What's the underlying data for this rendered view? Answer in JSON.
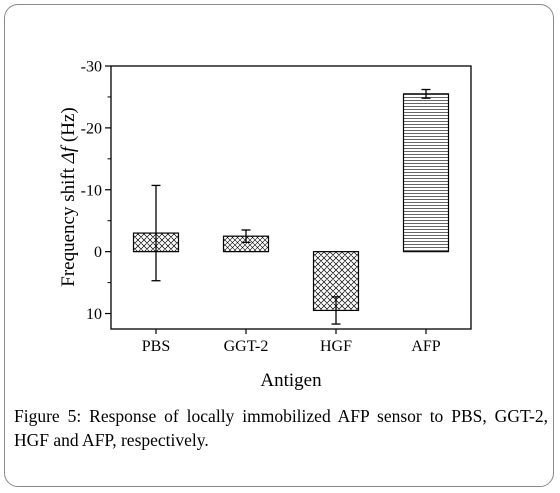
{
  "chart_data": {
    "type": "bar",
    "xlabel": "Antigen",
    "ylabel_prefix": "Frequency shift ",
    "ylabel_symbol": "Δf",
    "ylabel_suffix": " (Hz)",
    "categories": [
      "PBS",
      "GGT-2",
      "HGF",
      "AFP"
    ],
    "values": [
      -3,
      -2.5,
      9.5,
      -25.5
    ],
    "errors": [
      7.7,
      1.0,
      2.2,
      0.7
    ],
    "patterns": [
      "crosshatch",
      "crosshatch-fine",
      "crosshatch",
      "horizontal-lines"
    ],
    "ylim": [
      12.5,
      -30
    ],
    "y_ticks": [
      10,
      0,
      -10,
      -20,
      -30
    ],
    "y_tick_labels": [
      "10",
      "0",
      "-10",
      "-20",
      "-30"
    ],
    "y_axis_inverted": true,
    "grid": false,
    "bar_fill": "#ffffff",
    "bar_stroke": "#000000"
  },
  "caption": {
    "text": "Figure 5: Response of locally immobilized AFP sensor to PBS, GGT-2, HGF and AFP, respectively."
  }
}
